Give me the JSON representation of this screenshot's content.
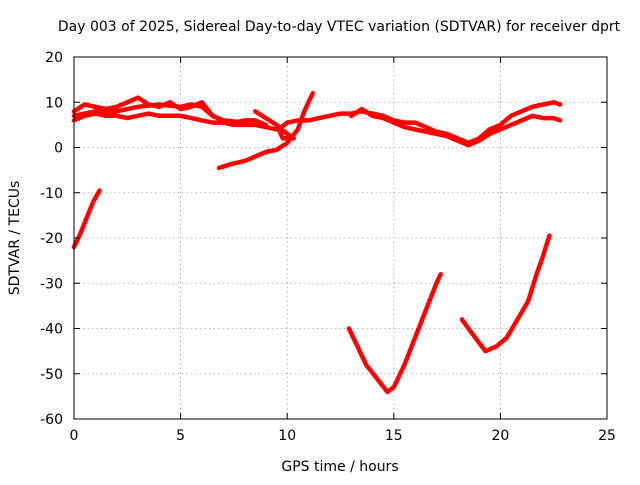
{
  "chart_data": {
    "type": "line",
    "title": "Day 003 of 2025, Sidereal Day-to-day VTEC variation (SDTVAR) for receiver dprt",
    "xlabel": "GPS time / hours",
    "ylabel": "SDTVAR / TECUs",
    "xlim": [
      0,
      25
    ],
    "ylim": [
      -60,
      20
    ],
    "xticks": [
      0,
      5,
      10,
      15,
      20,
      25
    ],
    "yticks": [
      -60,
      -50,
      -40,
      -30,
      -20,
      -10,
      0,
      10,
      20
    ],
    "grid": true,
    "legend": "none",
    "color": "#ff0000",
    "series": [
      {
        "values": [
          [
            0.0,
            -22
          ],
          [
            0.3,
            -19
          ],
          [
            0.6,
            -15.5
          ],
          [
            0.9,
            -12
          ],
          [
            1.2,
            -9.5
          ]
        ]
      },
      {
        "values": [
          [
            0.0,
            8
          ],
          [
            0.5,
            9.5
          ],
          [
            1.0,
            9
          ],
          [
            1.5,
            8.5
          ],
          [
            2.0,
            9
          ],
          [
            2.5,
            10
          ],
          [
            3.0,
            11
          ],
          [
            3.5,
            9.5
          ],
          [
            4.0,
            9
          ],
          [
            4.5,
            10
          ],
          [
            5.0,
            8.5
          ],
          [
            5.5,
            9
          ],
          [
            6.0,
            10
          ],
          [
            6.5,
            7
          ],
          [
            7.0,
            6
          ],
          [
            7.5,
            5.5
          ],
          [
            8.0,
            6
          ],
          [
            8.5,
            6
          ],
          [
            9.0,
            5
          ]
        ]
      },
      {
        "values": [
          [
            0.0,
            6
          ],
          [
            0.5,
            7
          ],
          [
            1.0,
            7.5
          ],
          [
            1.5,
            7
          ],
          [
            2.0,
            7
          ],
          [
            2.5,
            6.5
          ],
          [
            3.0,
            7
          ],
          [
            3.5,
            7.5
          ],
          [
            4.0,
            7
          ],
          [
            4.5,
            7
          ],
          [
            5.0,
            7
          ],
          [
            5.5,
            6.5
          ],
          [
            6.0,
            6
          ],
          [
            6.5,
            5.5
          ],
          [
            7.0,
            5.5
          ],
          [
            7.5,
            5
          ],
          [
            8.0,
            5
          ],
          [
            8.5,
            5
          ],
          [
            9.0,
            4.5
          ],
          [
            9.5,
            4
          ]
        ]
      },
      {
        "values": [
          [
            0.0,
            7
          ],
          [
            1.0,
            8
          ],
          [
            2.0,
            8
          ],
          [
            3.0,
            9
          ],
          [
            4.0,
            9.5
          ],
          [
            5.0,
            9
          ],
          [
            5.5,
            9.5
          ],
          [
            6.0,
            9
          ],
          [
            6.5,
            7
          ],
          [
            7.0,
            6
          ],
          [
            8.0,
            5.5
          ]
        ]
      },
      {
        "values": [
          [
            6.8,
            -4.5
          ],
          [
            7.5,
            -3.5
          ],
          [
            8.0,
            -3
          ],
          [
            8.5,
            -2
          ],
          [
            9.0,
            -1
          ],
          [
            9.5,
            -0.5
          ],
          [
            10.0,
            1
          ],
          [
            10.5,
            4
          ],
          [
            10.8,
            8
          ],
          [
            11.0,
            10
          ],
          [
            11.2,
            12
          ]
        ]
      },
      {
        "values": [
          [
            8.5,
            8
          ],
          [
            9.0,
            6.5
          ],
          [
            9.5,
            5
          ],
          [
            10.0,
            3
          ],
          [
            10.3,
            2
          ],
          [
            9.8,
            2
          ],
          [
            9.6,
            4
          ],
          [
            10.0,
            5.5
          ],
          [
            10.5,
            6
          ],
          [
            11.0,
            6
          ],
          [
            11.5,
            6.5
          ],
          [
            12.0,
            7
          ],
          [
            12.5,
            7.5
          ],
          [
            13.0,
            7.5
          ],
          [
            13.5,
            8
          ],
          [
            14.0,
            7.5
          ],
          [
            14.5,
            7
          ],
          [
            15.0,
            6
          ],
          [
            15.5,
            5.5
          ],
          [
            16.0,
            5.5
          ],
          [
            16.5,
            4.5
          ],
          [
            17.0,
            3.5
          ],
          [
            17.5,
            3
          ],
          [
            18.0,
            2
          ],
          [
            18.5,
            1
          ],
          [
            19.0,
            2
          ],
          [
            19.5,
            4
          ],
          [
            20.0,
            5
          ],
          [
            20.5,
            7
          ],
          [
            21.0,
            8
          ],
          [
            21.5,
            9
          ],
          [
            22.0,
            9.5
          ],
          [
            22.5,
            10
          ],
          [
            22.8,
            9.5
          ]
        ]
      },
      {
        "values": [
          [
            13.0,
            7
          ],
          [
            13.5,
            8.5
          ],
          [
            14.0,
            7
          ],
          [
            14.5,
            6.5
          ],
          [
            15.0,
            5.5
          ],
          [
            15.5,
            4.5
          ],
          [
            16.0,
            4
          ],
          [
            16.5,
            3.5
          ],
          [
            17.0,
            3
          ],
          [
            17.5,
            2.5
          ],
          [
            18.0,
            1.5
          ],
          [
            18.5,
            0.5
          ],
          [
            19.0,
            1.5
          ],
          [
            19.5,
            3
          ],
          [
            20.0,
            4
          ],
          [
            20.5,
            5
          ],
          [
            21.0,
            6
          ],
          [
            21.5,
            7
          ],
          [
            22.0,
            6.5
          ],
          [
            22.5,
            6.5
          ],
          [
            22.8,
            6
          ]
        ]
      },
      {
        "values": [
          [
            12.9,
            -40
          ],
          [
            13.3,
            -44
          ],
          [
            13.7,
            -48
          ],
          [
            14.2,
            -51
          ],
          [
            14.7,
            -54
          ],
          [
            15.0,
            -53
          ],
          [
            15.5,
            -48
          ],
          [
            16.0,
            -42
          ],
          [
            16.5,
            -36
          ],
          [
            17.0,
            -30
          ],
          [
            17.2,
            -28
          ]
        ]
      },
      {
        "values": [
          [
            18.2,
            -38
          ],
          [
            18.5,
            -40
          ],
          [
            18.9,
            -42.5
          ],
          [
            19.3,
            -45
          ],
          [
            19.8,
            -44
          ],
          [
            20.3,
            -42
          ],
          [
            20.8,
            -38
          ],
          [
            21.3,
            -34
          ],
          [
            21.7,
            -28
          ],
          [
            22.0,
            -24
          ],
          [
            22.3,
            -19.5
          ]
        ]
      }
    ]
  }
}
